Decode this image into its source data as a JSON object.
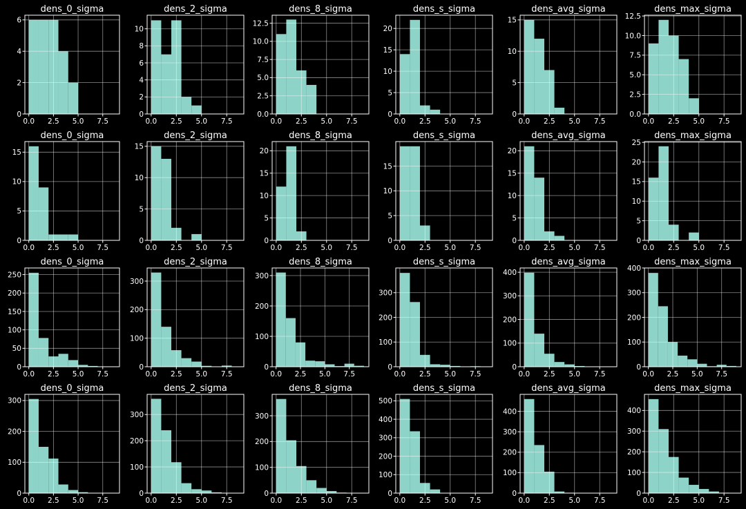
{
  "colors": {
    "background": "#000000",
    "bar": "#8dd3c7",
    "text": "#ffffff",
    "grid": "#ffffff"
  },
  "chart_data": [
    {
      "type": "bar",
      "title": "dens_0_sigma",
      "bin_edges": [
        0,
        1,
        2,
        3,
        4,
        5
      ],
      "values": [
        6,
        6,
        6,
        4,
        2
      ],
      "xlim": [
        -0.4,
        9.2
      ],
      "ylim": [
        0,
        6.3
      ],
      "xticks": [
        "0.0",
        "2.5",
        "5.0",
        "7.5"
      ],
      "xtick_values": [
        0,
        2.5,
        5,
        7.5
      ],
      "yticks": [
        "0",
        "2",
        "4",
        "6"
      ],
      "ytick_values": [
        0,
        2,
        4,
        6
      ],
      "grid": true
    },
    {
      "type": "bar",
      "title": "dens_2_sigma",
      "bin_edges": [
        0,
        1,
        2,
        3,
        4,
        5
      ],
      "values": [
        11,
        7,
        11,
        2,
        1
      ],
      "xlim": [
        -0.4,
        9.2
      ],
      "ylim": [
        0,
        11.6
      ],
      "xticks": [
        "0.0",
        "2.5",
        "5.0",
        "7.5"
      ],
      "xtick_values": [
        0,
        2.5,
        5,
        7.5
      ],
      "yticks": [
        "0",
        "2",
        "4",
        "6",
        "8",
        "10"
      ],
      "ytick_values": [
        0,
        2,
        4,
        6,
        8,
        10
      ],
      "grid": true
    },
    {
      "type": "bar",
      "title": "dens_8_sigma",
      "bin_edges": [
        0,
        1,
        2,
        3,
        4
      ],
      "values": [
        11,
        13,
        6,
        4
      ],
      "xlim": [
        -0.4,
        9.2
      ],
      "ylim": [
        0,
        13.6
      ],
      "xticks": [
        "0.0",
        "2.5",
        "5.0",
        "7.5"
      ],
      "xtick_values": [
        0,
        2.5,
        5,
        7.5
      ],
      "yticks": [
        "0.0",
        "2.5",
        "5.0",
        "7.5",
        "10.0",
        "12.5"
      ],
      "ytick_values": [
        0,
        2.5,
        5,
        7.5,
        10,
        12.5
      ],
      "grid": true
    },
    {
      "type": "bar",
      "title": "dens_s_sigma",
      "bin_edges": [
        0,
        1,
        2,
        3,
        4
      ],
      "values": [
        14,
        22,
        2,
        1
      ],
      "xlim": [
        -0.4,
        9.2
      ],
      "ylim": [
        0,
        23.1
      ],
      "xticks": [
        "0.0",
        "2.5",
        "5.0",
        "7.5"
      ],
      "xtick_values": [
        0,
        2.5,
        5,
        7.5
      ],
      "yticks": [
        "0",
        "5",
        "10",
        "15",
        "20"
      ],
      "ytick_values": [
        0,
        5,
        10,
        15,
        20
      ],
      "grid": true
    },
    {
      "type": "bar",
      "title": "dens_avg_sigma",
      "bin_edges": [
        0,
        1,
        2,
        3,
        4
      ],
      "values": [
        15,
        12,
        7,
        1
      ],
      "xlim": [
        -0.4,
        9.2
      ],
      "ylim": [
        0,
        15.75
      ],
      "xticks": [
        "0.0",
        "2.5",
        "5.0",
        "7.5"
      ],
      "xtick_values": [
        0,
        2.5,
        5,
        7.5
      ],
      "yticks": [
        "0",
        "5",
        "10",
        "15"
      ],
      "ytick_values": [
        0,
        5,
        10,
        15
      ],
      "grid": true
    },
    {
      "type": "bar",
      "title": "dens_max_sigma",
      "bin_edges": [
        0,
        1,
        2,
        3,
        4,
        5
      ],
      "values": [
        9,
        12,
        10,
        7,
        2
      ],
      "xlim": [
        -0.4,
        9.2
      ],
      "ylim": [
        0,
        12.6
      ],
      "xticks": [
        "0.0",
        "2.5",
        "5.0",
        "7.5"
      ],
      "xtick_values": [
        0,
        2.5,
        5,
        7.5
      ],
      "yticks": [
        "0.0",
        "2.5",
        "5.0",
        "7.5",
        "10.0",
        "12.5"
      ],
      "ytick_values": [
        0,
        2.5,
        5,
        7.5,
        10,
        12.5
      ],
      "grid": true
    },
    {
      "type": "bar",
      "title": "dens_0_sigma",
      "bin_edges": [
        0,
        1,
        2,
        3,
        4,
        5
      ],
      "values": [
        16,
        9,
        1,
        1,
        1
      ],
      "xlim": [
        -0.4,
        9.2
      ],
      "ylim": [
        0,
        16.8
      ],
      "xticks": [
        "0.0",
        "2.5",
        "5.0",
        "7.5"
      ],
      "xtick_values": [
        0,
        2.5,
        5,
        7.5
      ],
      "yticks": [
        "0",
        "5",
        "10",
        "15"
      ],
      "ytick_values": [
        0,
        5,
        10,
        15
      ],
      "grid": true
    },
    {
      "type": "bar",
      "title": "dens_2_sigma",
      "bin_edges": [
        0,
        1,
        2,
        3,
        4,
        5
      ],
      "values": [
        15,
        13,
        2,
        0,
        1
      ],
      "xlim": [
        -0.4,
        9.2
      ],
      "ylim": [
        0,
        15.75
      ],
      "xticks": [
        "0.0",
        "2.5",
        "5.0",
        "7.5"
      ],
      "xtick_values": [
        0,
        2.5,
        5,
        7.5
      ],
      "yticks": [
        "0",
        "5",
        "10",
        "15"
      ],
      "ytick_values": [
        0,
        5,
        10,
        15
      ],
      "grid": true
    },
    {
      "type": "bar",
      "title": "dens_8_sigma",
      "bin_edges": [
        0,
        1,
        2,
        3
      ],
      "values": [
        12,
        21,
        2
      ],
      "xlim": [
        -0.4,
        9.2
      ],
      "ylim": [
        0,
        22.05
      ],
      "xticks": [
        "0.0",
        "2.5",
        "5.0",
        "7.5"
      ],
      "xtick_values": [
        0,
        2.5,
        5,
        7.5
      ],
      "yticks": [
        "0",
        "5",
        "10",
        "15",
        "20"
      ],
      "ytick_values": [
        0,
        5,
        10,
        15,
        20
      ],
      "grid": true
    },
    {
      "type": "bar",
      "title": "dens_s_sigma",
      "bin_edges": [
        0,
        1,
        2,
        3
      ],
      "values": [
        19,
        19,
        3
      ],
      "xlim": [
        -0.4,
        9.2
      ],
      "ylim": [
        0,
        19.95
      ],
      "xticks": [
        "0.0",
        "2.5",
        "5.0",
        "7.5"
      ],
      "xtick_values": [
        0,
        2.5,
        5,
        7.5
      ],
      "yticks": [
        "0",
        "5",
        "10",
        "15"
      ],
      "ytick_values": [
        0,
        5,
        10,
        15
      ],
      "grid": true
    },
    {
      "type": "bar",
      "title": "dens_avg_sigma",
      "bin_edges": [
        0,
        1,
        2,
        3,
        4
      ],
      "values": [
        21,
        14,
        2,
        1
      ],
      "xlim": [
        -0.4,
        9.2
      ],
      "ylim": [
        0,
        22.05
      ],
      "xticks": [
        "0.0",
        "2.5",
        "5.0",
        "7.5"
      ],
      "xtick_values": [
        0,
        2.5,
        5,
        7.5
      ],
      "yticks": [
        "0",
        "5",
        "10",
        "15",
        "20"
      ],
      "ytick_values": [
        0,
        5,
        10,
        15,
        20
      ],
      "grid": true
    },
    {
      "type": "bar",
      "title": "dens_max_sigma",
      "bin_edges": [
        0,
        1,
        2,
        3,
        4,
        5
      ],
      "values": [
        16,
        24,
        4,
        0,
        2
      ],
      "xlim": [
        -0.4,
        9.2
      ],
      "ylim": [
        0,
        25.2
      ],
      "xticks": [
        "0.0",
        "2.5",
        "5.0",
        "7.5"
      ],
      "xtick_values": [
        0,
        2.5,
        5,
        7.5
      ],
      "yticks": [
        "0",
        "5",
        "10",
        "15",
        "20",
        "25"
      ],
      "ytick_values": [
        0,
        5,
        10,
        15,
        20,
        25
      ],
      "grid": true
    },
    {
      "type": "bar",
      "title": "dens_0_sigma",
      "bin_edges": [
        0,
        1,
        2,
        3,
        4,
        5,
        6,
        7
      ],
      "values": [
        255,
        78,
        28,
        35,
        18,
        5,
        2
      ],
      "xlim": [
        -0.4,
        9.2
      ],
      "ylim": [
        0,
        268
      ],
      "xticks": [
        "0.0",
        "2.5",
        "5.0",
        "7.5"
      ],
      "xtick_values": [
        0,
        2.5,
        5,
        7.5
      ],
      "yticks": [
        "0",
        "50",
        "100",
        "150",
        "200",
        "250"
      ],
      "ytick_values": [
        0,
        50,
        100,
        150,
        200,
        250
      ],
      "grid": true
    },
    {
      "type": "bar",
      "title": "dens_2_sigma",
      "bin_edges": [
        0,
        1,
        2,
        3,
        4,
        5,
        6,
        7,
        8
      ],
      "values": [
        330,
        140,
        58,
        30,
        18,
        3,
        0,
        4
      ],
      "xlim": [
        -0.4,
        9.2
      ],
      "ylim": [
        0,
        346
      ],
      "xticks": [
        "0.0",
        "2.5",
        "5.0",
        "7.5"
      ],
      "xtick_values": [
        0,
        2.5,
        5,
        7.5
      ],
      "yticks": [
        "0",
        "100",
        "200",
        "300"
      ],
      "ytick_values": [
        0,
        100,
        200,
        300
      ],
      "grid": true
    },
    {
      "type": "bar",
      "title": "dens_8_sigma",
      "bin_edges": [
        0,
        1,
        2,
        3,
        4,
        5,
        6,
        7,
        8,
        9
      ],
      "values": [
        310,
        160,
        80,
        20,
        18,
        8,
        2,
        10,
        3
      ],
      "xlim": [
        -0.4,
        9.5
      ],
      "ylim": [
        0,
        325
      ],
      "xticks": [
        "0.0",
        "2.5",
        "5.0",
        "7.5"
      ],
      "xtick_values": [
        0,
        2.5,
        5,
        7.5
      ],
      "yticks": [
        "0",
        "100",
        "200",
        "300"
      ],
      "ytick_values": [
        0,
        100,
        200,
        300
      ],
      "grid": true
    },
    {
      "type": "bar",
      "title": "dens_s_sigma",
      "bin_edges": [
        0,
        1,
        2,
        3,
        4,
        5,
        6,
        7,
        8
      ],
      "values": [
        380,
        262,
        48,
        10,
        8,
        3,
        1,
        2
      ],
      "xlim": [
        -0.4,
        9.2
      ],
      "ylim": [
        0,
        400
      ],
      "xticks": [
        "0.0",
        "2.5",
        "5.0",
        "7.5"
      ],
      "xtick_values": [
        0,
        2.5,
        5,
        7.5
      ],
      "yticks": [
        "0",
        "100",
        "200",
        "300"
      ],
      "ytick_values": [
        0,
        100,
        200,
        300
      ],
      "grid": true
    },
    {
      "type": "bar",
      "title": "dens_avg_sigma",
      "bin_edges": [
        0,
        1,
        2,
        3,
        4,
        5,
        6
      ],
      "values": [
        398,
        140,
        55,
        20,
        10,
        3
      ],
      "xlim": [
        -0.4,
        9.2
      ],
      "ylim": [
        0,
        418
      ],
      "xticks": [
        "0.0",
        "2.5",
        "5.0",
        "7.5"
      ],
      "xtick_values": [
        0,
        2.5,
        5,
        7.5
      ],
      "yticks": [
        "0",
        "100",
        "200",
        "300",
        "400"
      ],
      "ytick_values": [
        0,
        100,
        200,
        300,
        400
      ],
      "grid": true
    },
    {
      "type": "bar",
      "title": "dens_max_sigma",
      "bin_edges": [
        0,
        1,
        2,
        3,
        4,
        5,
        6,
        7,
        8,
        9
      ],
      "values": [
        380,
        245,
        100,
        45,
        30,
        12,
        2,
        8,
        3
      ],
      "xlim": [
        -0.4,
        9.5
      ],
      "ylim": [
        0,
        400
      ],
      "xticks": [
        "0.0",
        "2.5",
        "5.0",
        "7.5"
      ],
      "xtick_values": [
        0,
        2.5,
        5,
        7.5
      ],
      "yticks": [
        "0",
        "100",
        "200",
        "300",
        "400"
      ],
      "ytick_values": [
        0,
        100,
        200,
        300,
        400
      ],
      "grid": true
    },
    {
      "type": "bar",
      "title": "dens_0_sigma",
      "bin_edges": [
        0,
        1,
        2,
        3,
        4,
        5,
        6,
        7
      ],
      "values": [
        305,
        150,
        112,
        28,
        10,
        3,
        1
      ],
      "xlim": [
        -0.4,
        9.2
      ],
      "ylim": [
        0,
        320
      ],
      "xticks": [
        "0.0",
        "2.5",
        "5.0",
        "7.5"
      ],
      "xtick_values": [
        0,
        2.5,
        5,
        7.5
      ],
      "yticks": [
        "0",
        "100",
        "200",
        "300"
      ],
      "ytick_values": [
        0,
        100,
        200,
        300
      ],
      "grid": true
    },
    {
      "type": "bar",
      "title": "dens_2_sigma",
      "bin_edges": [
        0,
        1,
        2,
        3,
        4,
        5,
        6,
        7
      ],
      "values": [
        360,
        240,
        118,
        38,
        15,
        10,
        3
      ],
      "xlim": [
        -0.4,
        9.2
      ],
      "ylim": [
        0,
        377
      ],
      "xticks": [
        "0.0",
        "2.5",
        "5.0",
        "7.5"
      ],
      "xtick_values": [
        0,
        2.5,
        5,
        7.5
      ],
      "yticks": [
        "0",
        "100",
        "200",
        "300"
      ],
      "ytick_values": [
        0,
        100,
        200,
        300
      ],
      "grid": true
    },
    {
      "type": "bar",
      "title": "dens_8_sigma",
      "bin_edges": [
        0,
        1,
        2,
        3,
        4,
        5,
        6,
        7
      ],
      "values": [
        365,
        205,
        105,
        50,
        20,
        8,
        2
      ],
      "xlim": [
        -0.4,
        9.2
      ],
      "ylim": [
        0,
        383
      ],
      "xticks": [
        "0.0",
        "2.5",
        "5.0",
        "7.5"
      ],
      "xtick_values": [
        0,
        2.5,
        5,
        7.5
      ],
      "yticks": [
        "0",
        "100",
        "200",
        "300"
      ],
      "ytick_values": [
        0,
        100,
        200,
        300
      ],
      "grid": true
    },
    {
      "type": "bar",
      "title": "dens_s_sigma",
      "bin_edges": [
        0,
        1,
        2,
        3,
        4
      ],
      "values": [
        510,
        335,
        55,
        20
      ],
      "xlim": [
        -0.4,
        9.2
      ],
      "ylim": [
        0,
        535
      ],
      "xticks": [
        "0.0",
        "2.5",
        "5.0",
        "7.5"
      ],
      "xtick_values": [
        0,
        2.5,
        5,
        7.5
      ],
      "yticks": [
        "0",
        "100",
        "200",
        "300",
        "400",
        "500"
      ],
      "ytick_values": [
        0,
        100,
        200,
        300,
        400,
        500
      ],
      "grid": true
    },
    {
      "type": "bar",
      "title": "dens_avg_sigma",
      "bin_edges": [
        0,
        1,
        2,
        3,
        4,
        5
      ],
      "values": [
        460,
        235,
        105,
        8,
        2
      ],
      "xlim": [
        -0.4,
        9.2
      ],
      "ylim": [
        0,
        483
      ],
      "xticks": [
        "0.0",
        "2.5",
        "5.0",
        "7.5"
      ],
      "xtick_values": [
        0,
        2.5,
        5,
        7.5
      ],
      "yticks": [
        "0",
        "100",
        "200",
        "300",
        "400"
      ],
      "ytick_values": [
        0,
        100,
        200,
        300,
        400
      ],
      "grid": true
    },
    {
      "type": "bar",
      "title": "dens_max_sigma",
      "bin_edges": [
        0,
        1,
        2,
        3,
        4,
        5,
        6,
        7,
        8
      ],
      "values": [
        455,
        310,
        175,
        75,
        40,
        20,
        8,
        2
      ],
      "xlim": [
        -0.4,
        9.2
      ],
      "ylim": [
        0,
        478
      ],
      "xticks": [
        "0.0",
        "2.5",
        "5.0",
        "7.5"
      ],
      "xtick_values": [
        0,
        2.5,
        5,
        7.5
      ],
      "yticks": [
        "0",
        "100",
        "200",
        "300",
        "400"
      ],
      "ytick_values": [
        0,
        100,
        200,
        300,
        400
      ],
      "grid": true
    }
  ]
}
